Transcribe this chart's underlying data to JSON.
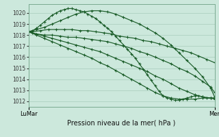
{
  "title": "Pression niveau de la mer( hPa )",
  "xlabel_left": "LuMar",
  "xlabel_right": "Mer",
  "ylim": [
    1011.5,
    1020.8
  ],
  "yticks": [
    1012,
    1013,
    1014,
    1015,
    1016,
    1017,
    1018,
    1019,
    1020
  ],
  "bg_color": "#cce8dc",
  "grid_color": "#a8ccbc",
  "line_color": "#1a5c28",
  "n_total": 48,
  "lines": [
    {
      "x": [
        0,
        2,
        4,
        6,
        8,
        10,
        12,
        14,
        16,
        18,
        20,
        22,
        24,
        26,
        28,
        30,
        32,
        34,
        36,
        38,
        40,
        42,
        44,
        46,
        47
      ],
      "y": [
        1018.3,
        1018.5,
        1018.7,
        1019.0,
        1019.3,
        1019.6,
        1019.9,
        1020.1,
        1020.2,
        1020.2,
        1020.1,
        1019.9,
        1019.6,
        1019.3,
        1019.0,
        1018.6,
        1018.2,
        1017.7,
        1017.1,
        1016.4,
        1015.7,
        1015.0,
        1014.2,
        1013.2,
        1012.4
      ]
    },
    {
      "x": [
        0,
        1,
        2,
        3,
        4,
        5,
        6,
        7,
        8,
        9,
        10,
        11,
        12,
        13,
        14,
        15,
        16,
        17,
        18,
        19,
        20,
        21,
        22,
        23,
        24,
        25,
        26,
        27,
        28,
        29,
        30,
        31,
        32,
        33,
        34,
        35,
        36,
        37,
        38,
        39,
        40,
        41,
        42,
        43,
        44,
        45,
        46,
        47
      ],
      "y": [
        1018.3,
        1018.4,
        1018.6,
        1018.9,
        1019.2,
        1019.5,
        1019.8,
        1020.0,
        1020.2,
        1020.3,
        1020.4,
        1020.4,
        1020.3,
        1020.2,
        1020.1,
        1019.9,
        1019.7,
        1019.5,
        1019.2,
        1018.9,
        1018.6,
        1018.3,
        1017.9,
        1017.5,
        1017.1,
        1016.7,
        1016.3,
        1015.9,
        1015.4,
        1014.9,
        1014.4,
        1013.9,
        1013.4,
        1012.9,
        1012.5,
        1012.3,
        1012.2,
        1012.1,
        1012.1,
        1012.2,
        1012.3,
        1012.4,
        1012.5,
        1012.5,
        1012.4,
        1012.3,
        1012.3,
        1012.2
      ]
    },
    {
      "x": [
        0,
        1,
        2,
        4,
        6,
        8,
        10,
        12,
        14,
        16,
        18,
        20,
        22,
        24,
        26,
        28,
        30,
        32,
        34,
        36,
        38,
        40,
        42,
        44,
        46,
        47
      ],
      "y": [
        1018.3,
        1018.2,
        1018.1,
        1018.0,
        1018.0,
        1017.9,
        1017.8,
        1017.8,
        1017.7,
        1017.6,
        1017.5,
        1017.4,
        1017.2,
        1017.0,
        1016.8,
        1016.5,
        1016.3,
        1016.0,
        1015.7,
        1015.4,
        1015.0,
        1014.7,
        1014.3,
        1013.8,
        1013.3,
        1012.8
      ]
    },
    {
      "x": [
        0,
        2,
        4,
        6,
        8,
        10,
        12,
        14,
        16,
        18,
        20,
        22,
        24,
        26,
        28,
        30,
        32,
        34,
        36,
        38,
        40,
        42,
        44,
        46,
        47
      ],
      "y": [
        1018.3,
        1018.1,
        1017.9,
        1017.7,
        1017.5,
        1017.3,
        1017.1,
        1016.9,
        1016.7,
        1016.5,
        1016.2,
        1015.9,
        1015.6,
        1015.3,
        1015.0,
        1014.7,
        1014.3,
        1014.0,
        1013.6,
        1013.2,
        1012.9,
        1012.6,
        1012.4,
        1012.3,
        1012.3
      ]
    },
    {
      "x": [
        0,
        2,
        4,
        6,
        8,
        10,
        12,
        14,
        16,
        18,
        20,
        22,
        24,
        26,
        28,
        30,
        32,
        34,
        36,
        38,
        40,
        42,
        44,
        46,
        47
      ],
      "y": [
        1018.3,
        1018.0,
        1017.7,
        1017.4,
        1017.1,
        1016.8,
        1016.5,
        1016.2,
        1015.9,
        1015.5,
        1015.2,
        1014.8,
        1014.4,
        1014.0,
        1013.6,
        1013.2,
        1012.8,
        1012.5,
        1012.3,
        1012.2,
        1012.2,
        1012.2,
        1012.3,
        1012.3,
        1012.3
      ]
    },
    {
      "x": [
        0,
        1,
        3,
        5,
        7,
        9,
        11,
        13,
        15,
        17,
        19,
        21,
        23,
        25,
        27,
        29,
        31,
        33,
        35,
        37,
        39,
        41,
        43,
        45,
        47
      ],
      "y": [
        1018.3,
        1018.3,
        1018.4,
        1018.5,
        1018.5,
        1018.5,
        1018.5,
        1018.4,
        1018.4,
        1018.3,
        1018.2,
        1018.1,
        1017.9,
        1017.8,
        1017.7,
        1017.5,
        1017.4,
        1017.2,
        1017.0,
        1016.8,
        1016.6,
        1016.4,
        1016.1,
        1015.8,
        1015.5
      ]
    }
  ]
}
